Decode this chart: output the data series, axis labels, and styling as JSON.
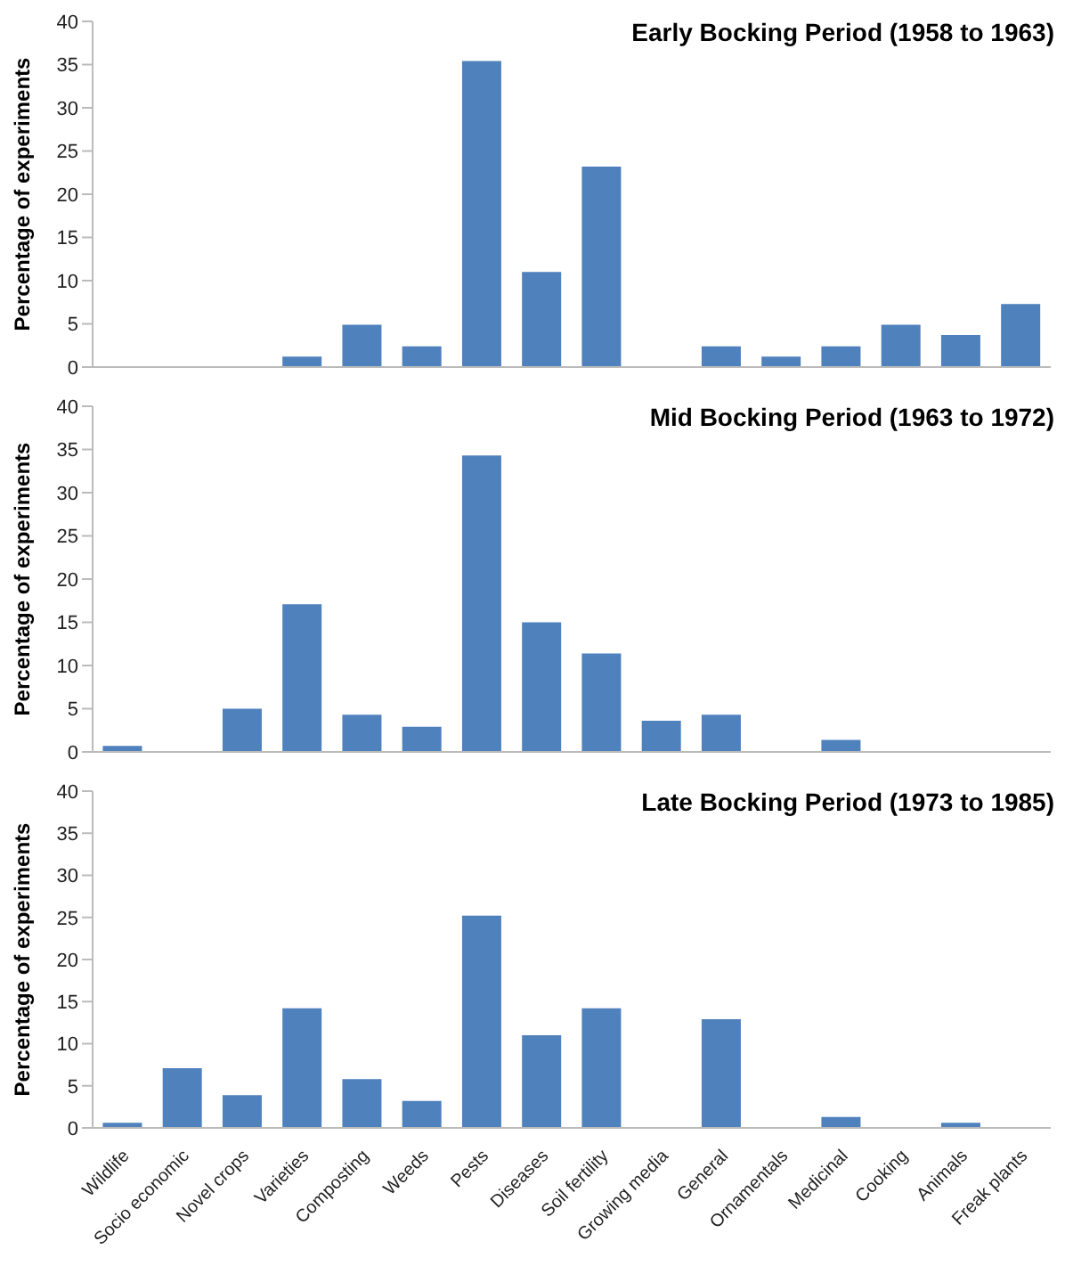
{
  "chart_data": [
    {
      "type": "bar",
      "title": "Early Bocking Period (1958 to 1963)",
      "ylabel": "Percentage of experiments",
      "categories": [
        null,
        null,
        null,
        null,
        null,
        null,
        null,
        null,
        null,
        null,
        null,
        null,
        null,
        null,
        null,
        null
      ],
      "color": "#4f81bd",
      "values": [
        0,
        0,
        0,
        1.2,
        4.9,
        2.4,
        35.4,
        11,
        23.2,
        0,
        2.4,
        1.2,
        2.4,
        4.9,
        3.7,
        7.3
      ],
      "ylim": [
        0,
        40
      ],
      "yticks": [
        0,
        5,
        10,
        15,
        20,
        25,
        30,
        35,
        40
      ],
      "grid": false,
      "legend": false,
      "tick_labels": "y"
    },
    {
      "type": "bar",
      "title": "Mid Bocking Period (1963 to 1972)",
      "ylabel": "Percentage of experiments",
      "categories": [
        null,
        null,
        null,
        null,
        null,
        null,
        null,
        null,
        null,
        null,
        null,
        null,
        null,
        null,
        null,
        null
      ],
      "color": "#4f81bd",
      "values": [
        0.7,
        0,
        5,
        17.1,
        4.3,
        2.9,
        34.3,
        15,
        11.4,
        3.6,
        4.3,
        0,
        1.4,
        0,
        0,
        0
      ],
      "ylim": [
        0,
        40
      ],
      "yticks": [
        0,
        5,
        10,
        15,
        20,
        25,
        30,
        35,
        40
      ],
      "grid": false,
      "legend": false,
      "tick_labels": "y"
    },
    {
      "type": "bar",
      "title": "Late Bocking Period (1973 to 1985)",
      "ylabel": "Percentage of experiments",
      "categories": [
        "Wildlife",
        "Socio economic",
        "Novel crops",
        "Varieties",
        "Composting",
        "Weeds",
        "Pests",
        "Diseases",
        "Soil fertility",
        "Growing media",
        "General",
        "Ornamentals",
        "Medicinal",
        "Cooking",
        "Animals",
        "Freak plants"
      ],
      "color": "#4f81bd",
      "values": [
        0.6,
        7.1,
        3.9,
        14.2,
        5.8,
        3.2,
        25.2,
        11,
        14.2,
        0,
        12.9,
        0,
        1.3,
        0,
        0.6,
        0
      ],
      "ylim": [
        0,
        40
      ],
      "yticks": [
        0,
        5,
        10,
        15,
        20,
        25,
        30,
        35,
        40
      ],
      "grid": false,
      "legend": false
    }
  ]
}
